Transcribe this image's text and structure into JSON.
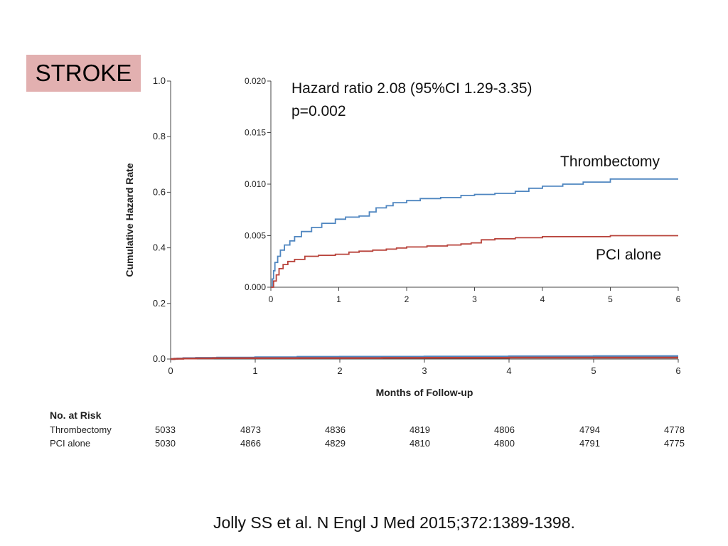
{
  "slide": {
    "label": "STROKE",
    "hazard_ratio": "Hazard ratio 2.08 (95%CI 1.29-3.35)",
    "p_value": "p=0.002",
    "series_label_1": "Thrombectomy",
    "series_label_2": "PCI alone",
    "citation": "Jolly SS et al. N Engl J Med 2015;372:1389-1398.",
    "colors": {
      "label_bg": "#e2b0b0",
      "thrombectomy": "#4f86c0",
      "pci_alone": "#b8423a"
    }
  },
  "risk_table": {
    "title": "No. at Risk",
    "rows": [
      {
        "name": "Thrombectomy",
        "values": [
          "5033",
          "4873",
          "4836",
          "4819",
          "4806",
          "4794",
          "4778"
        ]
      },
      {
        "name": "PCI alone",
        "values": [
          "5030",
          "4866",
          "4829",
          "4810",
          "4800",
          "4791",
          "4775"
        ]
      }
    ]
  },
  "chart_data": [
    {
      "type": "line",
      "xlabel": "Months of Follow-up",
      "ylabel": "Cumulative Hazard Rate",
      "xlim": [
        0,
        6
      ],
      "ylim": [
        0,
        1.0
      ],
      "xticks": [
        "0",
        "1",
        "2",
        "3",
        "4",
        "5",
        "6"
      ],
      "yticks": [
        "0.0",
        "0.2",
        "0.4",
        "0.6",
        "0.8",
        "1.0"
      ],
      "grid": false,
      "series": [
        {
          "name": "Thrombectomy",
          "x": [
            0,
            0.04,
            0.08,
            0.15,
            0.3,
            0.55,
            1.0,
            1.5,
            2.0,
            3.0,
            4.0,
            5.0,
            6.0
          ],
          "y": [
            0,
            0.001,
            0.002,
            0.003,
            0.004,
            0.005,
            0.0065,
            0.008,
            0.0085,
            0.009,
            0.01,
            0.0105,
            0.0105
          ]
        },
        {
          "name": "PCI alone",
          "x": [
            0,
            0.05,
            0.15,
            0.3,
            0.5,
            1.0,
            1.5,
            2.0,
            2.5,
            3.0,
            4.0,
            5.0,
            6.0
          ],
          "y": [
            0,
            0.001,
            0.002,
            0.0025,
            0.003,
            0.0033,
            0.0035,
            0.0037,
            0.004,
            0.0047,
            0.005,
            0.005,
            0.005
          ]
        }
      ]
    },
    {
      "type": "line",
      "xlim": [
        0,
        6
      ],
      "ylim": [
        0,
        0.02
      ],
      "xticks": [
        "0",
        "1",
        "2",
        "3",
        "4",
        "5",
        "6"
      ],
      "yticks": [
        "0.000",
        "0.005",
        "0.010",
        "0.015",
        "0.020"
      ],
      "grid": false,
      "series": [
        {
          "name": "Thrombectomy",
          "x": [
            0,
            0.02,
            0.04,
            0.06,
            0.1,
            0.14,
            0.2,
            0.28,
            0.35,
            0.45,
            0.6,
            0.75,
            0.95,
            1.1,
            1.3,
            1.45,
            1.55,
            1.7,
            1.8,
            2.0,
            2.2,
            2.5,
            2.8,
            3.0,
            3.3,
            3.6,
            3.8,
            4.0,
            4.3,
            4.6,
            5.0,
            6.0
          ],
          "y": [
            0,
            0.0008,
            0.0016,
            0.0024,
            0.003,
            0.0036,
            0.0041,
            0.0045,
            0.0049,
            0.0054,
            0.0058,
            0.0062,
            0.0066,
            0.0068,
            0.0069,
            0.0073,
            0.0077,
            0.0079,
            0.0082,
            0.0084,
            0.0086,
            0.0087,
            0.0089,
            0.009,
            0.0091,
            0.0093,
            0.0096,
            0.0098,
            0.01,
            0.0102,
            0.0105,
            0.0105
          ]
        },
        {
          "name": "PCI alone",
          "x": [
            0,
            0.04,
            0.08,
            0.12,
            0.18,
            0.25,
            0.35,
            0.5,
            0.7,
            0.95,
            1.15,
            1.3,
            1.5,
            1.7,
            1.85,
            2.0,
            2.3,
            2.6,
            2.8,
            2.95,
            3.1,
            3.3,
            3.6,
            4.0,
            5.0,
            6.0
          ],
          "y": [
            0,
            0.0006,
            0.0012,
            0.0018,
            0.0022,
            0.0025,
            0.0027,
            0.003,
            0.0031,
            0.0032,
            0.0034,
            0.0035,
            0.0036,
            0.0037,
            0.0038,
            0.0039,
            0.004,
            0.0041,
            0.0042,
            0.0043,
            0.0046,
            0.0047,
            0.0048,
            0.0049,
            0.005,
            0.005
          ]
        }
      ]
    }
  ]
}
